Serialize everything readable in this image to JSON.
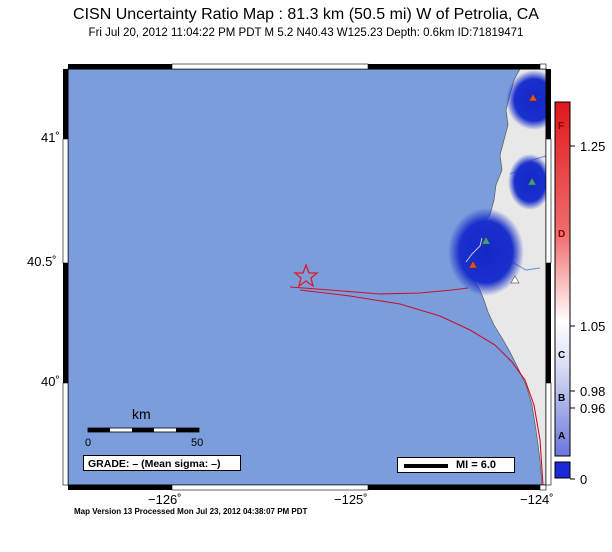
{
  "header": {
    "title": "CISN Uncertainty Ratio Map : 81.3 km (50.5 mi) W of Petrolia, CA",
    "subtitle": "Fri Jul 20, 2012 11:04:22 PM PDT   M 5.2   N40.43 W125.23   Depth: 0.6km   ID:71819471"
  },
  "map": {
    "lat_labels": [
      "41˚",
      "40.5˚",
      "40˚"
    ],
    "lon_labels": [
      "−126˚",
      "−125˚",
      "−124˚"
    ],
    "colors": {
      "ocean": "#7b9ddb",
      "land": "#e8e8e8",
      "fault": "#c8102e",
      "epicenter": "#e0182a",
      "uncertainty_blue": "#1428c8"
    },
    "scale_bar": {
      "unit": "km",
      "tick_start": "0",
      "tick_end": "50"
    },
    "grade_text": "GRADE: – (Mean sigma: –)",
    "mi_legend": "MI = 6.0",
    "stations": [
      {
        "name": "station-north",
        "color": "#e05020"
      },
      {
        "name": "station-mid",
        "color": "#40a080"
      },
      {
        "name": "station-south-green",
        "color": "#40a080"
      },
      {
        "name": "station-south-orange",
        "color": "#e05020"
      },
      {
        "name": "station-inland",
        "color": "#ffffff"
      }
    ]
  },
  "colorbar": {
    "value_labels": [
      "1.25",
      "1.05",
      "0.98",
      "0.96",
      "0"
    ],
    "letter_labels": [
      "F",
      "D",
      "C",
      "B",
      "A"
    ],
    "top_color": "#e0181c",
    "mid_color": "#ffffff",
    "bottom_color": "#1a2ad8"
  },
  "footer": "Map Version 13 Processed Mon Jul 23, 2012 04:38:07 PM PDT"
}
